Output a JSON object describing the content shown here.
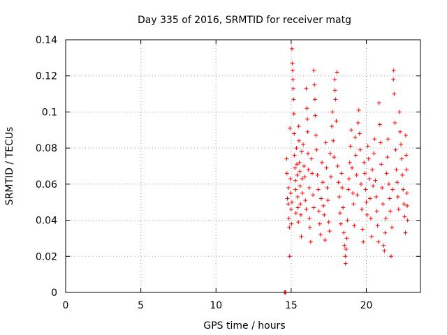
{
  "chart_data": {
    "type": "scatter",
    "title": "Day 335 of 2016, SRMTID for receiver matg",
    "xlabel": "GPS time / hours",
    "ylabel": "SRMTID / TECUs",
    "xlim": [
      0,
      23.6
    ],
    "ylim": [
      0,
      0.14
    ],
    "x_ticks": [
      0,
      5,
      10,
      15,
      20
    ],
    "x_tick_labels": [
      "0",
      "5",
      "10",
      "15",
      "20"
    ],
    "y_ticks": [
      0,
      0.02,
      0.04,
      0.06,
      0.08,
      0.1,
      0.12,
      0.14
    ],
    "y_tick_labels": [
      "0",
      "0.02",
      "0.04",
      "0.06",
      "0.08",
      "0.1",
      "0.12",
      "0.14"
    ],
    "grid": true,
    "marker": "+",
    "marker_color": "#ff0000",
    "series": [
      {
        "name": "SRMTID",
        "color": "#ff0000",
        "points": [
          [
            14.55,
            0.0
          ],
          [
            14.6,
            0.0
          ],
          [
            14.65,
            0.0
          ],
          [
            14.7,
            0.074
          ],
          [
            14.72,
            0.066
          ],
          [
            14.75,
            0.052
          ],
          [
            14.8,
            0.049
          ],
          [
            14.82,
            0.058
          ],
          [
            14.85,
            0.041
          ],
          [
            14.88,
            0.036
          ],
          [
            14.9,
            0.02
          ],
          [
            14.92,
            0.091
          ],
          [
            14.95,
            0.063
          ],
          [
            14.97,
            0.055
          ],
          [
            15.0,
            0.046
          ],
          [
            15.02,
            0.038
          ],
          [
            15.05,
            0.05
          ],
          [
            15.05,
            0.135
          ],
          [
            15.08,
            0.127
          ],
          [
            15.1,
            0.123
          ],
          [
            15.12,
            0.118
          ],
          [
            15.14,
            0.113
          ],
          [
            15.16,
            0.107
          ],
          [
            15.18,
            0.099
          ],
          [
            15.2,
            0.088
          ],
          [
            15.22,
            0.076
          ],
          [
            15.25,
            0.069
          ],
          [
            15.28,
            0.062
          ],
          [
            15.3,
            0.057
          ],
          [
            15.32,
            0.044
          ],
          [
            15.35,
            0.08
          ],
          [
            15.38,
            0.071
          ],
          [
            15.4,
            0.065
          ],
          [
            15.43,
            0.053
          ],
          [
            15.45,
            0.047
          ],
          [
            15.48,
            0.039
          ],
          [
            15.5,
            0.092
          ],
          [
            15.52,
            0.084
          ],
          [
            15.55,
            0.072
          ],
          [
            15.58,
            0.067
          ],
          [
            15.6,
            0.059
          ],
          [
            15.62,
            0.049
          ],
          [
            15.65,
            0.043
          ],
          [
            15.68,
            0.031
          ],
          [
            15.7,
            0.078
          ],
          [
            15.72,
            0.063
          ],
          [
            15.75,
            0.055
          ],
          [
            15.8,
            0.082
          ],
          [
            15.85,
            0.07
          ],
          [
            15.9,
            0.064
          ],
          [
            15.95,
            0.051
          ],
          [
            16.0,
            0.046
          ],
          [
            16.0,
            0.113
          ],
          [
            16.05,
            0.102
          ],
          [
            16.08,
            0.096
          ],
          [
            16.1,
            0.089
          ],
          [
            16.12,
            0.077
          ],
          [
            16.15,
            0.068
          ],
          [
            16.2,
            0.058
          ],
          [
            16.22,
            0.041
          ],
          [
            16.25,
            0.036
          ],
          [
            16.3,
            0.028
          ],
          [
            16.35,
            0.074
          ],
          [
            16.4,
            0.066
          ],
          [
            16.45,
            0.054
          ],
          [
            16.5,
            0.047
          ],
          [
            16.5,
            0.123
          ],
          [
            16.55,
            0.115
          ],
          [
            16.58,
            0.107
          ],
          [
            16.6,
            0.098
          ],
          [
            16.65,
            0.087
          ],
          [
            16.7,
            0.079
          ],
          [
            16.75,
            0.065
          ],
          [
            16.8,
            0.057
          ],
          [
            16.85,
            0.045
          ],
          [
            16.9,
            0.038
          ],
          [
            16.95,
            0.032
          ],
          [
            17.0,
            0.052
          ],
          [
            17.05,
            0.072
          ],
          [
            17.1,
            0.061
          ],
          [
            17.15,
            0.048
          ],
          [
            17.2,
            0.043
          ],
          [
            17.25,
            0.029
          ],
          [
            17.3,
            0.083
          ],
          [
            17.35,
            0.069
          ],
          [
            17.4,
            0.058
          ],
          [
            17.45,
            0.051
          ],
          [
            17.5,
            0.039
          ],
          [
            17.55,
            0.034
          ],
          [
            17.6,
            0.077
          ],
          [
            17.65,
            0.064
          ],
          [
            17.7,
            0.092
          ],
          [
            17.75,
            0.1
          ],
          [
            17.8,
            0.084
          ],
          [
            17.85,
            0.075
          ],
          [
            17.9,
            0.118
          ],
          [
            17.92,
            0.112
          ],
          [
            17.95,
            0.107
          ],
          [
            18.0,
            0.095
          ],
          [
            18.05,
            0.122
          ],
          [
            18.1,
            0.07
          ],
          [
            18.15,
            0.061
          ],
          [
            18.2,
            0.053
          ],
          [
            18.25,
            0.044
          ],
          [
            18.3,
            0.038
          ],
          [
            18.35,
            0.066
          ],
          [
            18.4,
            0.058
          ],
          [
            18.45,
            0.047
          ],
          [
            18.5,
            0.033
          ],
          [
            18.55,
            0.026
          ],
          [
            18.6,
            0.02
          ],
          [
            18.62,
            0.016
          ],
          [
            18.65,
            0.024
          ],
          [
            18.7,
            0.03
          ],
          [
            18.75,
            0.04
          ],
          [
            18.8,
            0.057
          ],
          [
            18.85,
            0.063
          ],
          [
            18.9,
            0.072
          ],
          [
            18.95,
            0.081
          ],
          [
            19.0,
            0.09
          ],
          [
            19.05,
            0.069
          ],
          [
            19.1,
            0.055
          ],
          [
            19.15,
            0.049
          ],
          [
            19.2,
            0.037
          ],
          [
            19.25,
            0.086
          ],
          [
            19.3,
            0.076
          ],
          [
            19.35,
            0.065
          ],
          [
            19.4,
            0.054
          ],
          [
            19.45,
            0.094
          ],
          [
            19.5,
            0.101
          ],
          [
            19.55,
            0.088
          ],
          [
            19.6,
            0.079
          ],
          [
            19.65,
            0.06
          ],
          [
            19.7,
            0.046
          ],
          [
            19.75,
            0.035
          ],
          [
            19.8,
            0.028
          ],
          [
            19.85,
            0.072
          ],
          [
            19.9,
            0.066
          ],
          [
            19.95,
            0.057
          ],
          [
            20.0,
            0.05
          ],
          [
            20.05,
            0.043
          ],
          [
            20.1,
            0.081
          ],
          [
            20.15,
            0.074
          ],
          [
            20.2,
            0.063
          ],
          [
            20.25,
            0.052
          ],
          [
            20.3,
            0.041
          ],
          [
            20.35,
            0.031
          ],
          [
            20.4,
            0.068
          ],
          [
            20.45,
            0.059
          ],
          [
            20.5,
            0.077
          ],
          [
            20.55,
            0.085
          ],
          [
            20.6,
            0.062
          ],
          [
            20.65,
            0.053
          ],
          [
            20.7,
            0.045
          ],
          [
            20.75,
            0.037
          ],
          [
            20.8,
            0.028
          ],
          [
            20.85,
            0.105
          ],
          [
            20.9,
            0.093
          ],
          [
            20.95,
            0.083
          ],
          [
            21.0,
            0.071
          ],
          [
            21.05,
            0.058
          ],
          [
            21.1,
            0.049
          ],
          [
            21.15,
            0.026
          ],
          [
            21.2,
            0.023
          ],
          [
            21.25,
            0.033
          ],
          [
            21.3,
            0.041
          ],
          [
            21.35,
            0.066
          ],
          [
            21.4,
            0.075
          ],
          [
            21.45,
            0.085
          ],
          [
            21.5,
            0.06
          ],
          [
            21.55,
            0.052
          ],
          [
            21.6,
            0.045
          ],
          [
            21.65,
            0.02
          ],
          [
            21.7,
            0.036
          ],
          [
            21.75,
            0.057
          ],
          [
            21.8,
            0.118
          ],
          [
            21.82,
            0.123
          ],
          [
            21.85,
            0.11
          ],
          [
            21.9,
            0.094
          ],
          [
            21.95,
            0.079
          ],
          [
            22.0,
            0.068
          ],
          [
            22.05,
            0.061
          ],
          [
            22.1,
            0.053
          ],
          [
            22.15,
            0.046
          ],
          [
            22.2,
            0.1
          ],
          [
            22.25,
            0.089
          ],
          [
            22.3,
            0.082
          ],
          [
            22.35,
            0.074
          ],
          [
            22.4,
            0.065
          ],
          [
            22.45,
            0.057
          ],
          [
            22.5,
            0.049
          ],
          [
            22.55,
            0.042
          ],
          [
            22.6,
            0.033
          ],
          [
            22.62,
            0.087
          ],
          [
            22.65,
            0.076
          ],
          [
            22.68,
            0.068
          ],
          [
            22.7,
            0.055
          ],
          [
            22.72,
            0.048
          ],
          [
            22.75,
            0.04
          ]
        ]
      }
    ]
  }
}
